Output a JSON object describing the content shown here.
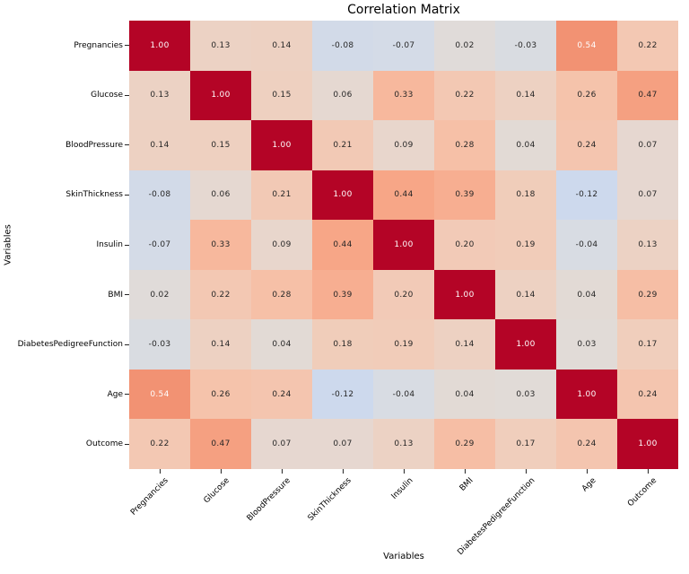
{
  "chart_data": {
    "type": "heatmap",
    "title": "Correlation Matrix",
    "xlabel": "Variables",
    "ylabel": "Variables",
    "categories": [
      "Pregnancies",
      "Glucose",
      "BloodPressure",
      "SkinThickness",
      "Insulin",
      "BMI",
      "DiabetesPedigreeFunction",
      "Age",
      "Outcome"
    ],
    "matrix": [
      [
        1.0,
        0.13,
        0.14,
        -0.08,
        -0.07,
        0.02,
        -0.03,
        0.54,
        0.22
      ],
      [
        0.13,
        1.0,
        0.15,
        0.06,
        0.33,
        0.22,
        0.14,
        0.26,
        0.47
      ],
      [
        0.14,
        0.15,
        1.0,
        0.21,
        0.09,
        0.28,
        0.04,
        0.24,
        0.07
      ],
      [
        -0.08,
        0.06,
        0.21,
        1.0,
        0.44,
        0.39,
        0.18,
        -0.12,
        0.07
      ],
      [
        -0.07,
        0.33,
        0.09,
        0.44,
        1.0,
        0.2,
        0.19,
        -0.04,
        0.13
      ],
      [
        0.02,
        0.22,
        0.28,
        0.39,
        0.2,
        1.0,
        0.14,
        0.04,
        0.29
      ],
      [
        -0.03,
        0.14,
        0.04,
        0.18,
        0.19,
        0.14,
        1.0,
        0.03,
        0.17
      ],
      [
        0.54,
        0.26,
        0.24,
        -0.12,
        -0.04,
        0.04,
        0.03,
        1.0,
        0.24
      ],
      [
        0.22,
        0.47,
        0.07,
        0.07,
        0.13,
        0.29,
        0.17,
        0.24,
        1.0
      ]
    ],
    "vmin": -1,
    "vmax": 1,
    "colormap": "coolwarm",
    "annotation_decimals": 2,
    "legend": "none",
    "grid": false,
    "colors": {
      "max_color": "#b40426",
      "mid_color": "#dddddd",
      "min_color": "#3b4cc0",
      "annotation_light": "#ffffff",
      "annotation_dark": "#262626",
      "tick_color": "#262626"
    }
  }
}
